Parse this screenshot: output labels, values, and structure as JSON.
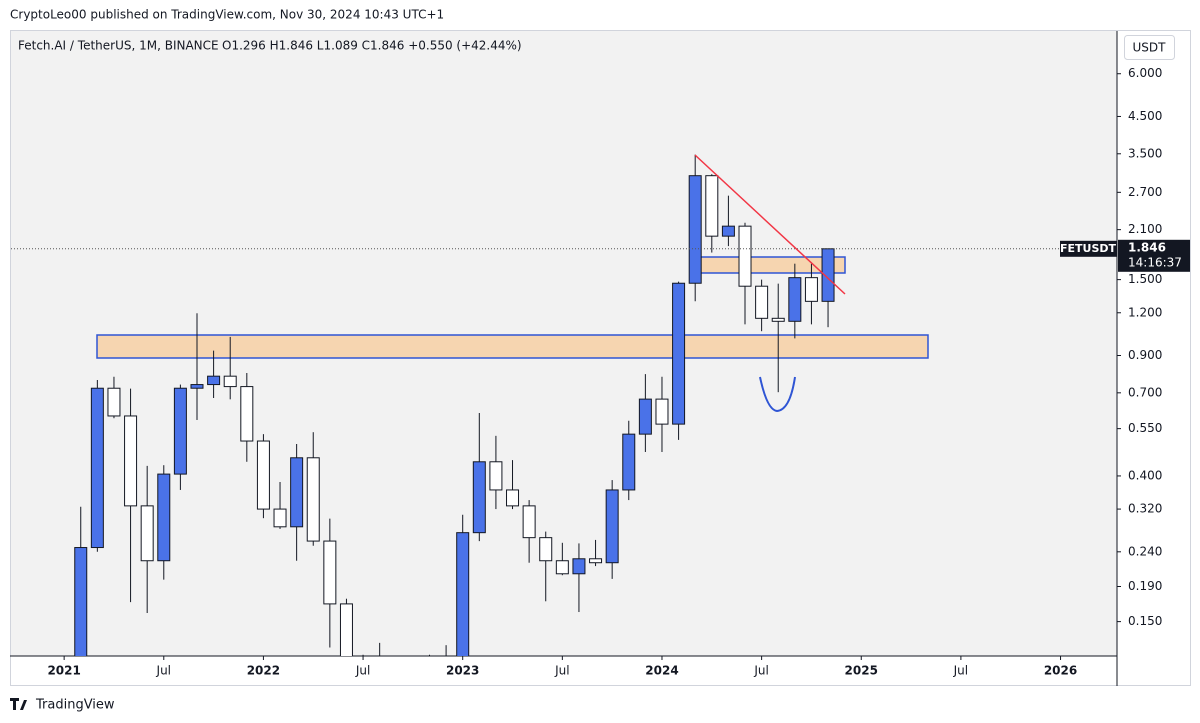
{
  "header": "CryptoLeo00 published on TradingView.com, Nov 30, 2024 10:43 UTC+1",
  "footer": "TradingView",
  "chart_data": {
    "type": "candlestick",
    "title": "Fetch.AI / TetherUS, 1M, BINANCE",
    "legend_values": "O1.296  H1.846  L1.089  C1.846  +0.550 (+42.44%)",
    "currency": "USDT",
    "log_scale": true,
    "up_color": "#4a72e8",
    "down_color": "#ffffff",
    "price_line": {
      "symbol": "FETUSDT",
      "value": 1.846,
      "countdown": "14:16:37"
    },
    "x": [
      1,
      2,
      3,
      4,
      5,
      6,
      7,
      8,
      9,
      10,
      11,
      12,
      13,
      14,
      15,
      16,
      17,
      18,
      19,
      20,
      21,
      22,
      23,
      24,
      25,
      26,
      27,
      28,
      29,
      30,
      31,
      32,
      33,
      34,
      35,
      36,
      37,
      38,
      39,
      40,
      41,
      42,
      43,
      44,
      45,
      46
    ],
    "open": [
      0.09,
      0.247,
      0.722,
      0.599,
      0.327,
      0.226,
      0.405,
      0.722,
      0.74,
      0.783,
      0.73,
      0.506,
      0.32,
      0.284,
      0.452,
      0.258,
      0.169,
      0.1,
      0.11,
      0.1,
      0.085,
      0.1,
      0.09,
      0.09,
      0.273,
      0.44,
      0.364,
      0.327,
      0.264,
      0.226,
      0.207,
      0.229,
      0.223,
      0.364,
      0.53,
      0.671,
      0.567,
      1.464,
      3.02,
      2.01,
      2.15,
      1.435,
      1.156,
      1.133,
      1.52,
      1.296
    ],
    "high": [
      0.325,
      0.763,
      0.78,
      0.72,
      0.428,
      0.43,
      0.74,
      1.196,
      0.93,
      1.02,
      0.8,
      0.53,
      0.384,
      0.496,
      0.537,
      0.3,
      0.175,
      0.12,
      0.13,
      0.11,
      0.11,
      0.12,
      0.128,
      0.308,
      0.611,
      0.524,
      0.445,
      0.34,
      0.275,
      0.255,
      0.254,
      0.26,
      0.389,
      0.58,
      0.794,
      0.78,
      1.48,
      3.48,
      3.05,
      2.64,
      2.2,
      1.5,
      1.46,
      1.67,
      1.67,
      1.846
    ],
    "low": [
      0.08,
      0.24,
      0.59,
      0.171,
      0.159,
      0.199,
      0.364,
      0.583,
      0.676,
      0.67,
      0.44,
      0.301,
      0.28,
      0.226,
      0.25,
      0.126,
      0.08,
      0.08,
      0.09,
      0.08,
      0.075,
      0.08,
      0.08,
      0.085,
      0.258,
      0.32,
      0.32,
      0.223,
      0.172,
      0.205,
      0.16,
      0.218,
      0.2,
      0.34,
      0.47,
      0.47,
      0.51,
      1.297,
      1.8,
      1.88,
      1.11,
      1.06,
      0.703,
      1.01,
      1.11,
      1.089
    ],
    "close": [
      0.247,
      0.722,
      0.599,
      0.327,
      0.226,
      0.405,
      0.722,
      0.74,
      0.783,
      0.73,
      0.506,
      0.32,
      0.284,
      0.452,
      0.258,
      0.169,
      0.1,
      0.11,
      0.1,
      0.085,
      0.1,
      0.09,
      0.09,
      0.273,
      0.44,
      0.364,
      0.327,
      0.264,
      0.226,
      0.207,
      0.229,
      0.223,
      0.364,
      0.53,
      0.671,
      0.567,
      1.464,
      3.02,
      2.01,
      2.15,
      1.435,
      1.156,
      1.133,
      1.52,
      1.296,
      1.846
    ],
    "xlim": [
      -3.2,
      63.4
    ],
    "xticks": [
      {
        "value": 0,
        "label": "2021"
      },
      {
        "value": 6,
        "label": "Jul"
      },
      {
        "value": 12,
        "label": "2022"
      },
      {
        "value": 18,
        "label": "Jul"
      },
      {
        "value": 24,
        "label": "2023"
      },
      {
        "value": 30,
        "label": "Jul"
      },
      {
        "value": 36,
        "label": "2024"
      },
      {
        "value": 42,
        "label": "Jul"
      },
      {
        "value": 48,
        "label": "2025"
      },
      {
        "value": 54,
        "label": "Jul"
      },
      {
        "value": 60,
        "label": "2026"
      }
    ],
    "ylim": [
      0.119,
      8.0
    ],
    "yticks": [
      {
        "value": 6,
        "label": "6.000"
      },
      {
        "value": 4.5,
        "label": "4.500"
      },
      {
        "value": 3.5,
        "label": "3.500"
      },
      {
        "value": 2.7,
        "label": "2.700"
      },
      {
        "value": 2.1,
        "label": "2.100"
      },
      {
        "value": 1.5,
        "label": "1.500"
      },
      {
        "value": 1.2,
        "label": "1.200"
      },
      {
        "value": 0.9,
        "label": "0.900"
      },
      {
        "value": 0.7,
        "label": "0.700"
      },
      {
        "value": 0.55,
        "label": "0.550"
      },
      {
        "value": 0.4,
        "label": "0.400"
      },
      {
        "value": 0.32,
        "label": "0.320"
      },
      {
        "value": 0.24,
        "label": "0.240"
      },
      {
        "value": 0.19,
        "label": "0.190"
      },
      {
        "value": 0.15,
        "label": "0.150"
      }
    ]
  }
}
